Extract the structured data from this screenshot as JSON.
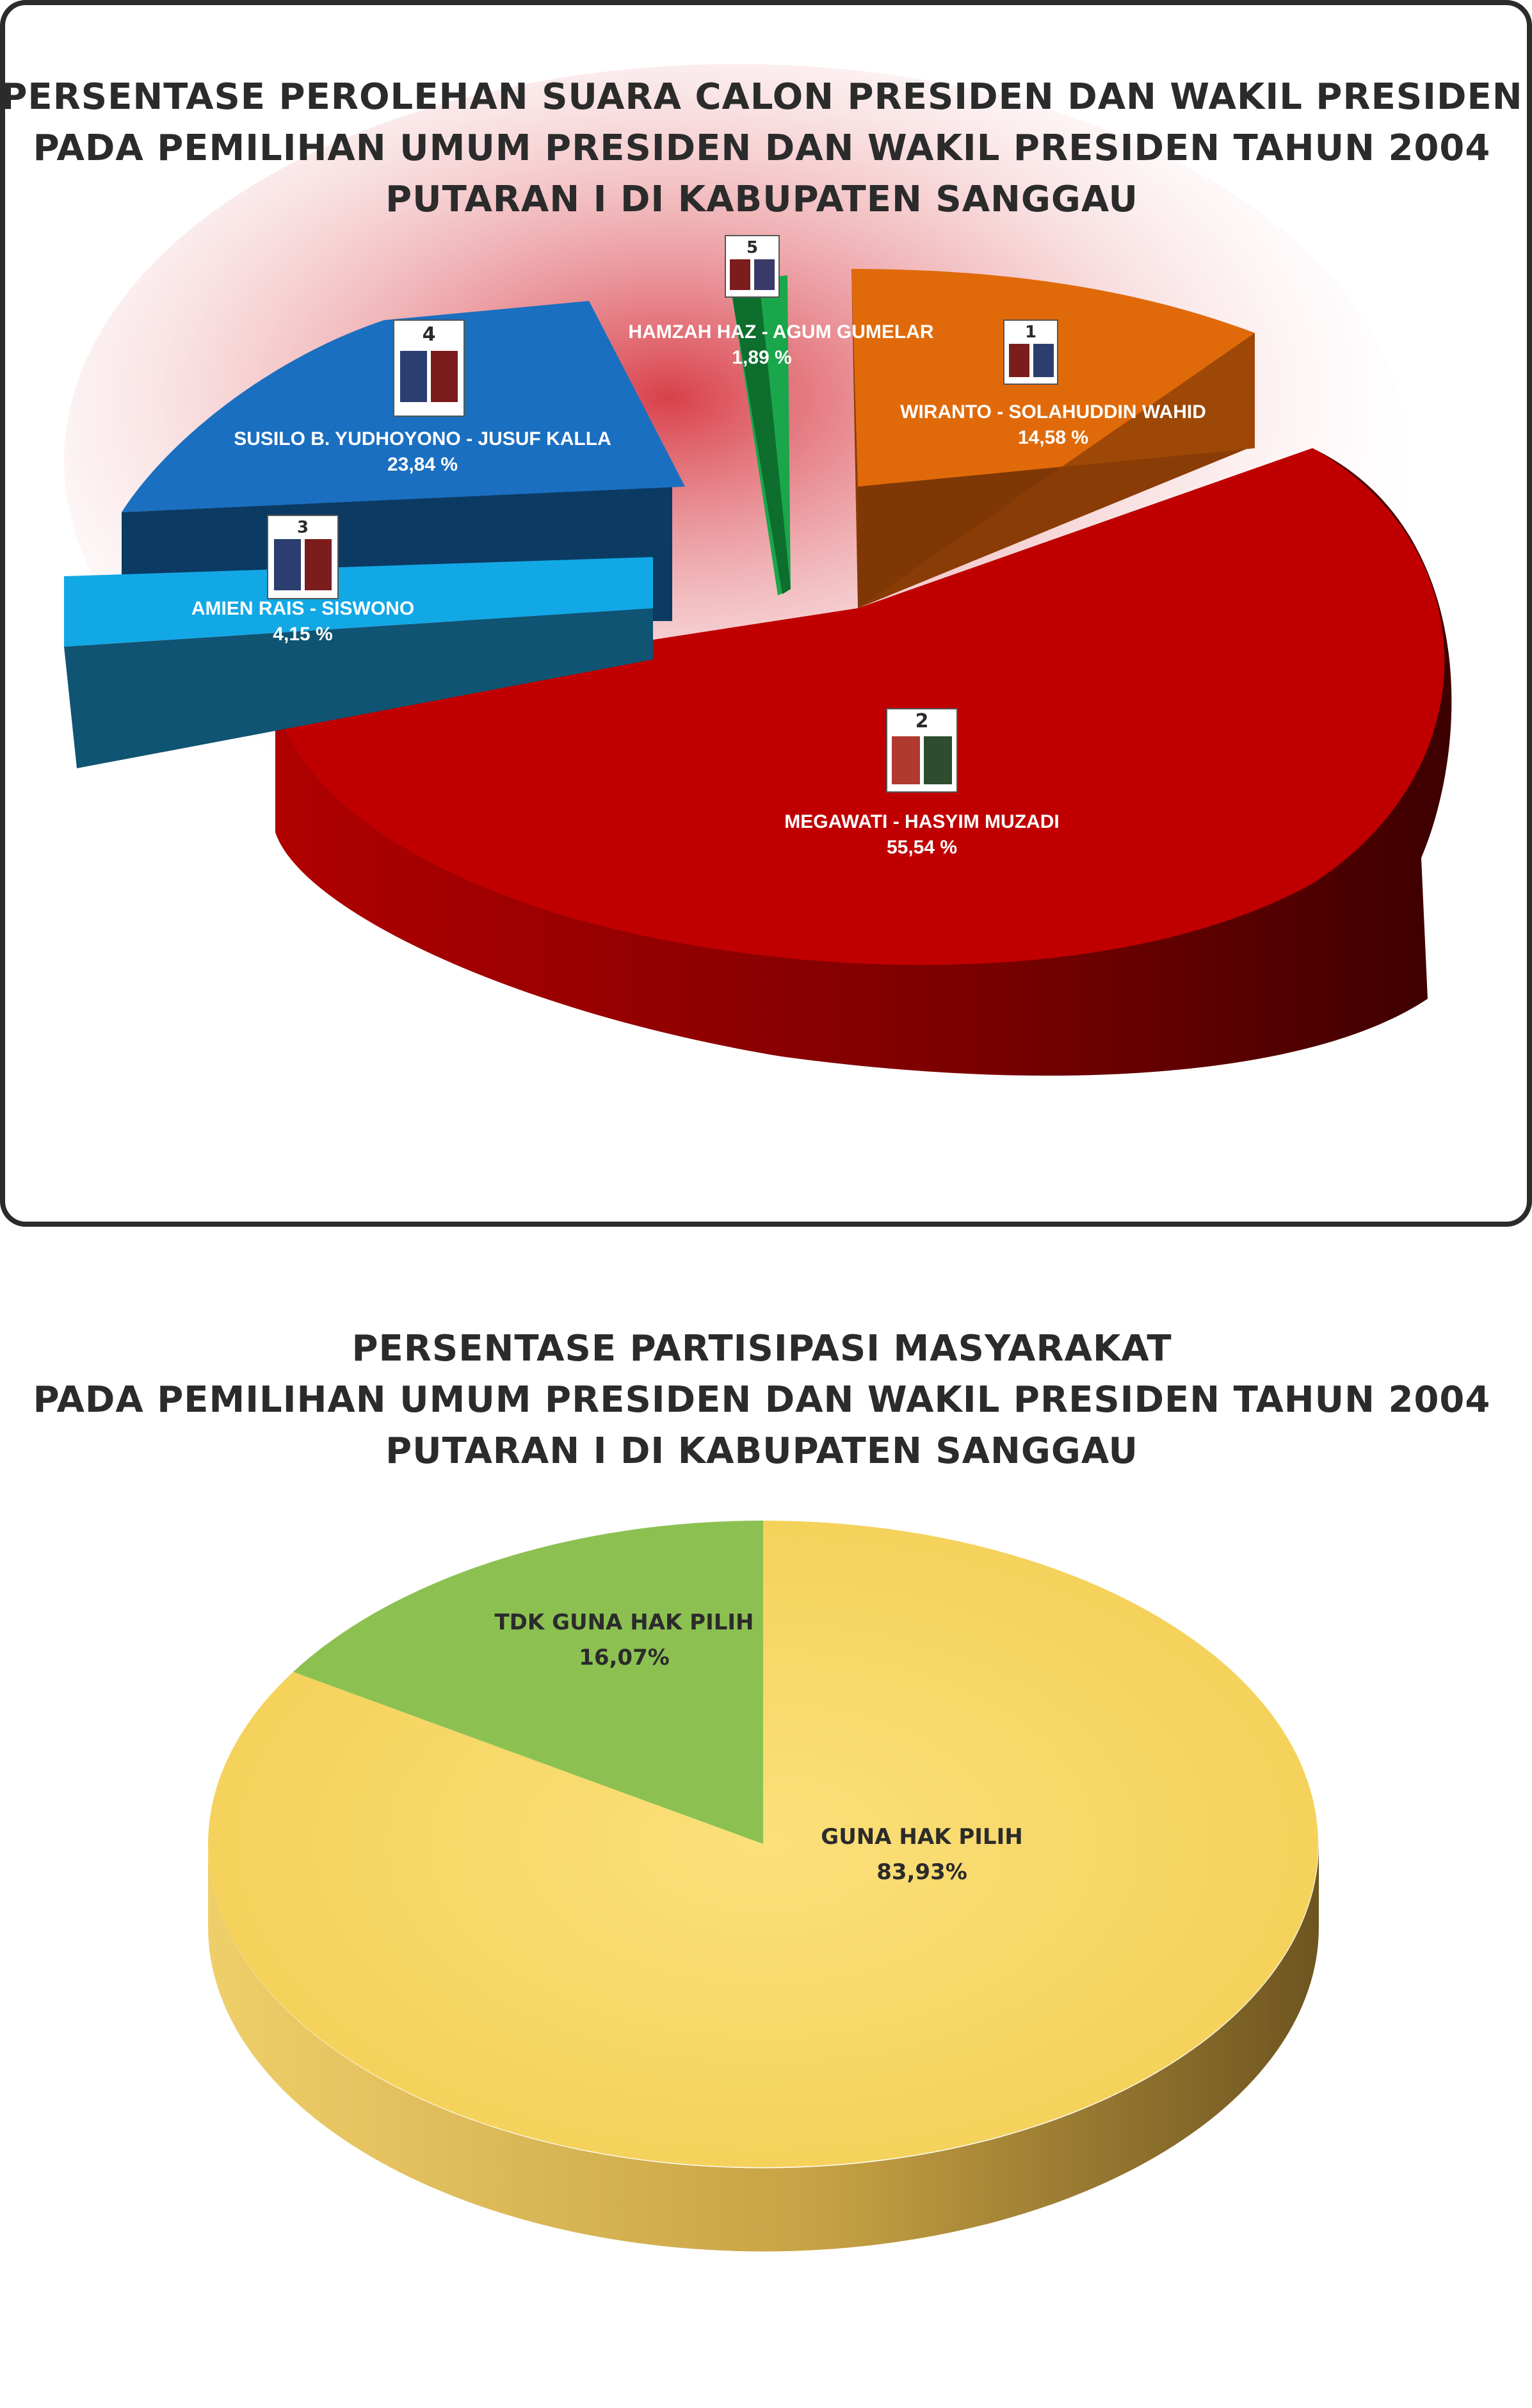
{
  "chart_data": [
    {
      "type": "pie",
      "title": "PERSENTASE PEROLEHAN SUARA CALON PRESIDEN DAN WAKIL PRESIDEN",
      "subtitle": [
        "PADA PEMILIHAN UMUM PRESIDEN DAN WAKIL PRESIDEN TAHUN 2004",
        "PUTARAN I DI KABUPATEN SANGGAU"
      ],
      "slices": [
        {
          "number": "1",
          "name": "WIRANTO - SOLAHUDDIN WAHID",
          "value": 14.58,
          "value_label": "14,58 %",
          "color": "#e06a0a"
        },
        {
          "number": "2",
          "name": "MEGAWATI - HASYIM MUZADI",
          "value": 55.54,
          "value_label": "55,54 %",
          "color": "#c00000"
        },
        {
          "number": "3",
          "name": "AMIEN RAIS - SISWONO",
          "value": 4.15,
          "value_label": "4,15 %",
          "color": "#12a8e6"
        },
        {
          "number": "4",
          "name": "SUSILO B. YUDHOYONO - JUSUF KALLA",
          "value": 23.84,
          "value_label": "23,84 %",
          "color": "#1b6fc0"
        },
        {
          "number": "5",
          "name": "HAMZAH HAZ - AGUM GUMELAR",
          "value": 1.89,
          "value_label": "1,89 %",
          "color": "#1aa64a"
        }
      ]
    },
    {
      "type": "pie",
      "title": "PERSENTASE PARTISIPASI MASYARAKAT",
      "subtitle": [
        "PADA PEMILIHAN UMUM PRESIDEN DAN WAKIL PRESIDEN TAHUN 2004",
        "PUTARAN I DI KABUPATEN SANGGAU"
      ],
      "slices": [
        {
          "name": "GUNA HAK PILIH",
          "value": 83.93,
          "value_label": "83,93%",
          "color": "#f7d35c"
        },
        {
          "name": "TDK GUNA HAK PILIH",
          "value": 16.07,
          "value_label": "16,07%",
          "color": "#8cc152"
        }
      ]
    }
  ]
}
